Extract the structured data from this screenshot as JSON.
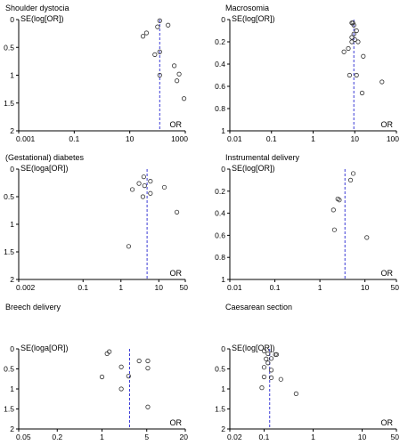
{
  "chart_data": [
    {
      "type": "scatter",
      "title": "Shoulder dystocia",
      "ylabel": "SE(log[OR])",
      "xlabel": "OR",
      "xscale": "log",
      "xlim": [
        0.001,
        1000
      ],
      "ylim": [
        0,
        2
      ],
      "y_inverted": true,
      "xticks": [
        0.001,
        0.1,
        10,
        1000
      ],
      "xtick_labels": [
        "0.001",
        "0.1",
        "10",
        "1000"
      ],
      "yticks": [
        0,
        0.5,
        1,
        1.5,
        2
      ],
      "ytick_labels": [
        "0",
        "0.5",
        "1",
        "1.5",
        "2"
      ],
      "pooled_or": 120,
      "points": [
        {
          "x": 120,
          "y": 0.02
        },
        {
          "x": 100,
          "y": 0.13
        },
        {
          "x": 240,
          "y": 0.1
        },
        {
          "x": 40,
          "y": 0.24
        },
        {
          "x": 30,
          "y": 0.3
        },
        {
          "x": 120,
          "y": 0.58
        },
        {
          "x": 80,
          "y": 0.63
        },
        {
          "x": 400,
          "y": 0.83
        },
        {
          "x": 600,
          "y": 0.98
        },
        {
          "x": 120,
          "y": 1.0
        },
        {
          "x": 500,
          "y": 1.1
        },
        {
          "x": 900,
          "y": 1.42
        }
      ]
    },
    {
      "type": "scatter",
      "title": "Macrosomia",
      "ylabel": "SE(log[OR])",
      "xlabel": "OR",
      "xscale": "log",
      "xlim": [
        0.01,
        100
      ],
      "ylim": [
        0,
        1
      ],
      "y_inverted": true,
      "xticks": [
        0.01,
        0.1,
        1,
        10,
        100
      ],
      "xtick_labels": [
        "0.01",
        "0.1",
        "1",
        "10",
        "100"
      ],
      "yticks": [
        0,
        0.2,
        0.4,
        0.6,
        0.8,
        1
      ],
      "ytick_labels": [
        "0",
        "0.2",
        "0.4",
        "0.6",
        "0.8",
        "1"
      ],
      "pooled_or": 9.5,
      "points": [
        {
          "x": 8.5,
          "y": 0.03
        },
        {
          "x": 9.0,
          "y": 0.03
        },
        {
          "x": 9.5,
          "y": 0.05
        },
        {
          "x": 11,
          "y": 0.1
        },
        {
          "x": 9.5,
          "y": 0.13
        },
        {
          "x": 8.5,
          "y": 0.16
        },
        {
          "x": 10,
          "y": 0.18
        },
        {
          "x": 8.5,
          "y": 0.2
        },
        {
          "x": 12,
          "y": 0.2
        },
        {
          "x": 7,
          "y": 0.26
        },
        {
          "x": 5.5,
          "y": 0.29
        },
        {
          "x": 16,
          "y": 0.33
        },
        {
          "x": 7.5,
          "y": 0.5
        },
        {
          "x": 11,
          "y": 0.5
        },
        {
          "x": 45,
          "y": 0.56
        },
        {
          "x": 15,
          "y": 0.66
        }
      ]
    },
    {
      "type": "scatter",
      "title": "(Gestational) diabetes",
      "ylabel": "SE(loga[OR])",
      "xlabel": "OR",
      "xscale": "log",
      "xlim": [
        0.002,
        50
      ],
      "ylim": [
        0,
        2
      ],
      "y_inverted": true,
      "xticks": [
        0.002,
        0.1,
        1,
        10,
        50
      ],
      "xtick_labels": [
        "0.002",
        "0.1",
        "1",
        "10",
        "50"
      ],
      "yticks": [
        0,
        0.5,
        1,
        1.5,
        2
      ],
      "ytick_labels": [
        "0",
        "0.5",
        "1",
        "1.5",
        "2"
      ],
      "pooled_or": 4.9,
      "points": [
        {
          "x": 4.0,
          "y": 0.14
        },
        {
          "x": 6.0,
          "y": 0.22
        },
        {
          "x": 3.0,
          "y": 0.26
        },
        {
          "x": 4.2,
          "y": 0.3
        },
        {
          "x": 14,
          "y": 0.33
        },
        {
          "x": 2.0,
          "y": 0.37
        },
        {
          "x": 6.0,
          "y": 0.44
        },
        {
          "x": 3.8,
          "y": 0.5
        },
        {
          "x": 30,
          "y": 0.78
        },
        {
          "x": 1.6,
          "y": 1.4
        }
      ]
    },
    {
      "type": "scatter",
      "title": "Instrumental delivery",
      "ylabel": "SE(log[OR])",
      "xlabel": "OR",
      "xscale": "log",
      "xlim": [
        0.01,
        50
      ],
      "ylim": [
        0,
        1
      ],
      "y_inverted": true,
      "xticks": [
        0.01,
        0.1,
        1,
        10,
        50
      ],
      "xtick_labels": [
        "0.01",
        "0.1",
        "1",
        "10",
        "50"
      ],
      "yticks": [
        0,
        0.2,
        0.4,
        0.6,
        0.8,
        1
      ],
      "ytick_labels": [
        "0",
        "0.2",
        "0.4",
        "0.6",
        "0.8",
        "1"
      ],
      "pooled_or": 3.6,
      "points": [
        {
          "x": 5.5,
          "y": 0.04
        },
        {
          "x": 4.8,
          "y": 0.1
        },
        {
          "x": 2.5,
          "y": 0.27
        },
        {
          "x": 2.7,
          "y": 0.28
        },
        {
          "x": 2.0,
          "y": 0.37
        },
        {
          "x": 2.1,
          "y": 0.55
        },
        {
          "x": 11,
          "y": 0.62
        }
      ]
    },
    {
      "type": "scatter",
      "title": "Breech delivery",
      "ylabel": "SE(loga[OR])",
      "xlabel": "OR",
      "xscale": "log",
      "xlim": [
        0.05,
        20
      ],
      "ylim": [
        0,
        2
      ],
      "y_inverted": true,
      "xticks": [
        0.05,
        0.2,
        1,
        5,
        20
      ],
      "xtick_labels": [
        "0.05",
        "0.2",
        "1",
        "5",
        "20"
      ],
      "yticks": [
        0,
        0.5,
        1,
        1.5,
        2
      ],
      "ytick_labels": [
        "0",
        "0.5",
        "1",
        "1.5",
        "2"
      ],
      "pooled_or": 2.7,
      "points": [
        {
          "x": 1.3,
          "y": 0.07
        },
        {
          "x": 1.2,
          "y": 0.12
        },
        {
          "x": 3.8,
          "y": 0.3
        },
        {
          "x": 5.2,
          "y": 0.3
        },
        {
          "x": 2.0,
          "y": 0.45
        },
        {
          "x": 5.2,
          "y": 0.48
        },
        {
          "x": 2.6,
          "y": 0.68
        },
        {
          "x": 1.0,
          "y": 0.7
        },
        {
          "x": 2.0,
          "y": 1.0
        },
        {
          "x": 5.2,
          "y": 1.45
        }
      ]
    },
    {
      "type": "scatter",
      "title": "Caesarean section",
      "ylabel": "SE(log[OR])",
      "xlabel": "OR",
      "xscale": "log",
      "xlim": [
        0.02,
        50
      ],
      "ylim": [
        0,
        2
      ],
      "y_inverted": true,
      "xticks": [
        0.02,
        0.1,
        1,
        10,
        50
      ],
      "xtick_labels": [
        "0.02",
        "0.1",
        "1",
        "10",
        "50"
      ],
      "yticks": [
        0,
        0.5,
        1,
        1.5,
        2
      ],
      "ytick_labels": [
        "0",
        "0.5",
        "1",
        "1.5",
        "2"
      ],
      "pooled_or": 0.13,
      "points": [
        {
          "x": 0.1,
          "y": 0.05
        },
        {
          "x": 0.12,
          "y": 0.12
        },
        {
          "x": 0.17,
          "y": 0.14
        },
        {
          "x": 0.18,
          "y": 0.14
        },
        {
          "x": 0.11,
          "y": 0.25
        },
        {
          "x": 0.14,
          "y": 0.24
        },
        {
          "x": 0.12,
          "y": 0.35
        },
        {
          "x": 0.1,
          "y": 0.46
        },
        {
          "x": 0.14,
          "y": 0.53
        },
        {
          "x": 0.1,
          "y": 0.7
        },
        {
          "x": 0.14,
          "y": 0.72
        },
        {
          "x": 0.22,
          "y": 0.76
        },
        {
          "x": 0.09,
          "y": 0.97
        },
        {
          "x": 0.45,
          "y": 1.12
        }
      ]
    }
  ],
  "colors": {
    "reference_line": "#3b3bd6",
    "axes": "#000000",
    "markers": "#333333"
  }
}
